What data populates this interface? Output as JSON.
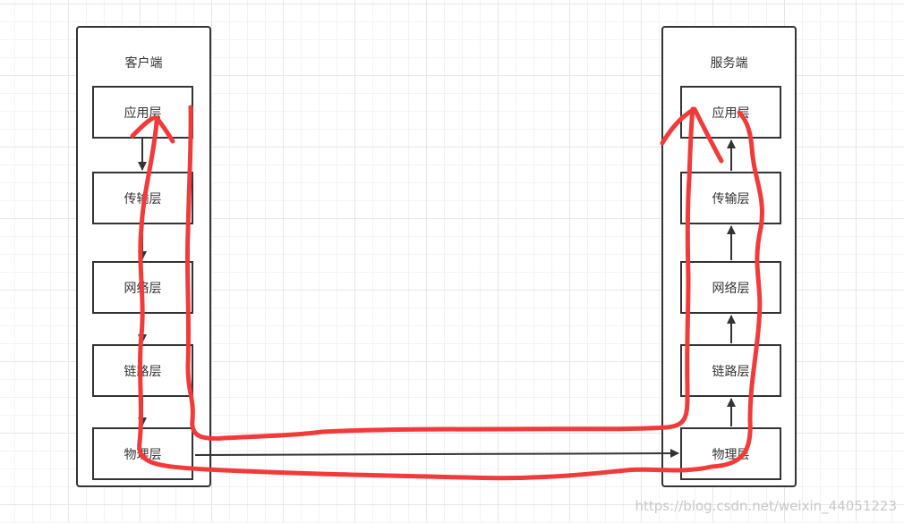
{
  "client": {
    "title": "客户端",
    "layers": [
      "应用层",
      "传输层",
      "网络层",
      "链路层",
      "物理层"
    ]
  },
  "server": {
    "title": "服务端",
    "layers": [
      "应用层",
      "传输层",
      "网络层",
      "链路层",
      "物理层"
    ]
  },
  "watermark": "https://blog.csdn.net/weixin_44051223",
  "colors": {
    "stroke": "#333333",
    "annotation": "#f23a3a"
  }
}
